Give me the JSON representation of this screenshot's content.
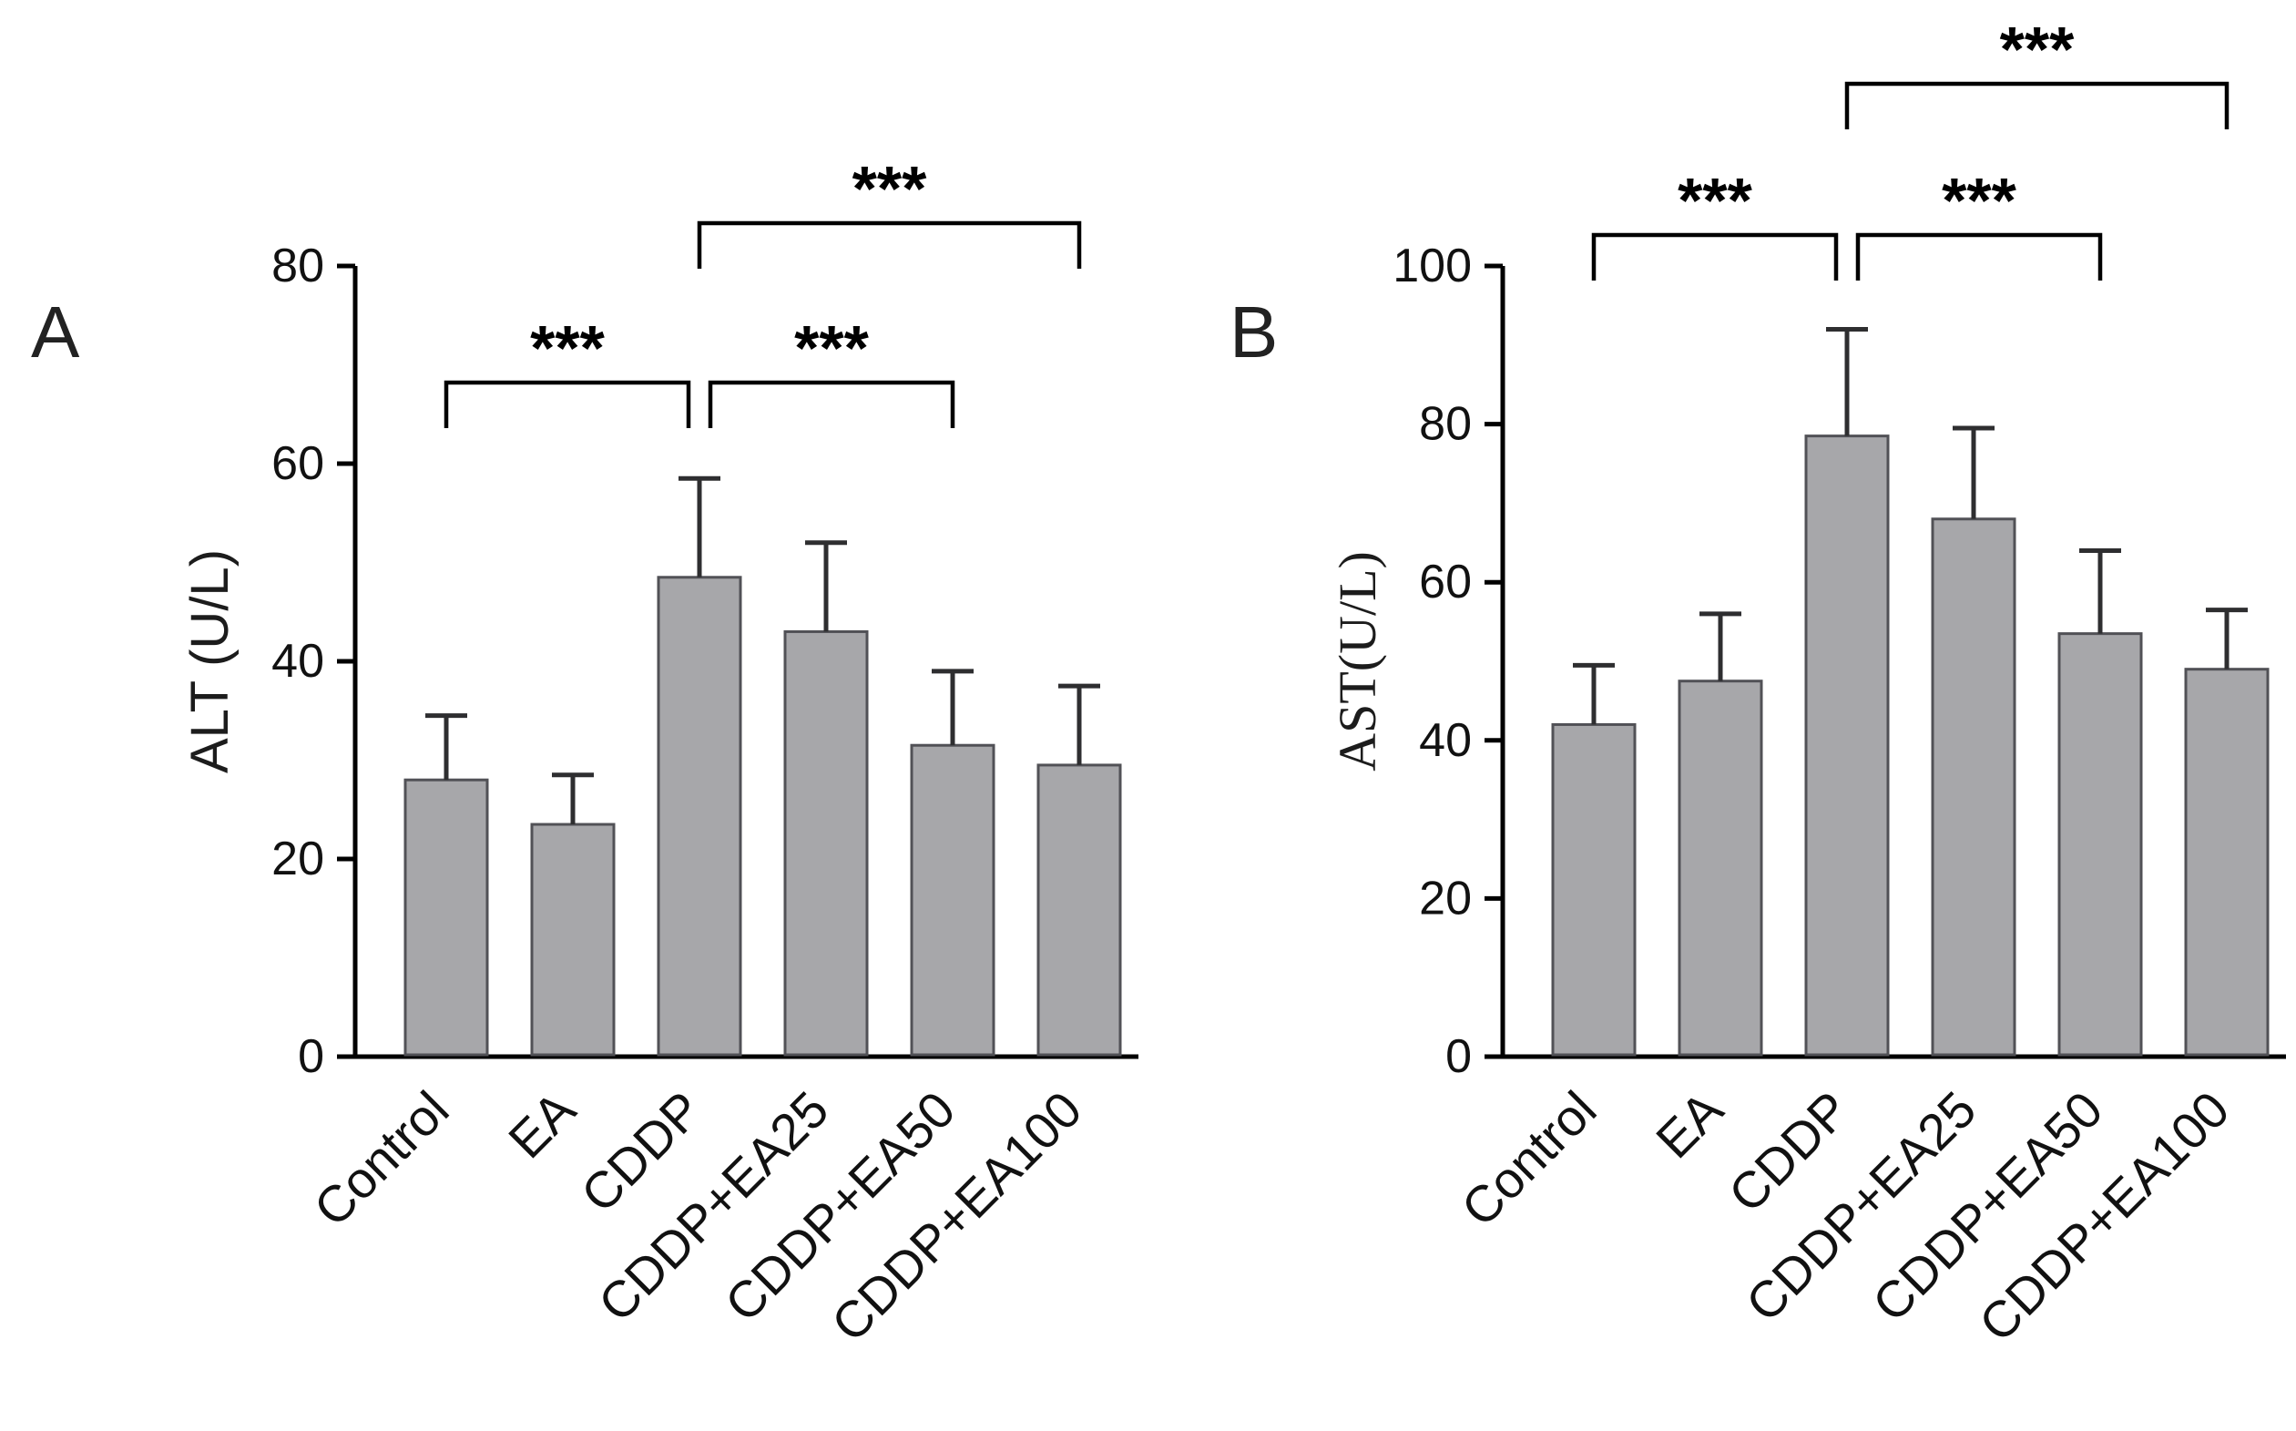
{
  "chart_data": [
    {
      "type": "bar",
      "panel_label": "A",
      "title": "",
      "xlabel": "",
      "ylabel": "ALT (U/L)",
      "ylabel_font": "sans",
      "categories": [
        "Control",
        "EA",
        "CDDP",
        "CDDP+EA25",
        "CDDP+EA50",
        "CDDP+EA100"
      ],
      "values": [
        28,
        23.5,
        48.5,
        43,
        31.5,
        29.5
      ],
      "errors": [
        6.5,
        5,
        10,
        9,
        7.5,
        8
      ],
      "ylim": [
        0,
        80
      ],
      "yticks": [
        0,
        20,
        40,
        60,
        80
      ],
      "grid": "off",
      "legend": "none",
      "bar_color": "#a7a7aa",
      "bar_border": "#515156",
      "error_color": "#2e2e30",
      "significance": [
        {
          "from": 0,
          "to": 2,
          "label": "***",
          "row": 0,
          "to_offset": -12
        },
        {
          "from": 2,
          "to": 4,
          "label": "***",
          "row": 0,
          "from_offset": 12
        },
        {
          "from": 2,
          "to": 5,
          "label": "***",
          "row": 1
        }
      ],
      "sig_row_y": [
        420,
        245
      ],
      "letter_x": 34
    },
    {
      "type": "bar",
      "panel_label": "B",
      "title": "",
      "xlabel": "",
      "ylabel": "AST(U/L)",
      "ylabel_font": "serif",
      "categories": [
        "Control",
        "EA",
        "CDDP",
        "CDDP+EA25",
        "CDDP+EA50",
        "CDDP+EA100"
      ],
      "values": [
        42,
        47.5,
        78.5,
        68,
        53.5,
        49
      ],
      "errors": [
        7.5,
        8.5,
        13.5,
        11.5,
        10.5,
        7.5
      ],
      "ylim": [
        0,
        100
      ],
      "yticks": [
        0,
        20,
        40,
        60,
        80,
        100
      ],
      "grid": "off",
      "legend": "none",
      "bar_color": "#a7a7aa",
      "bar_border": "#515156",
      "error_color": "#2e2e30",
      "significance": [
        {
          "from": 0,
          "to": 2,
          "label": "***",
          "row": 0,
          "to_offset": -12
        },
        {
          "from": 2,
          "to": 4,
          "label": "***",
          "row": 0,
          "from_offset": 12
        },
        {
          "from": 2,
          "to": 5,
          "label": "***",
          "row": 1
        }
      ],
      "sig_row_y": [
        258,
        92
      ],
      "letter_x": 90
    }
  ]
}
